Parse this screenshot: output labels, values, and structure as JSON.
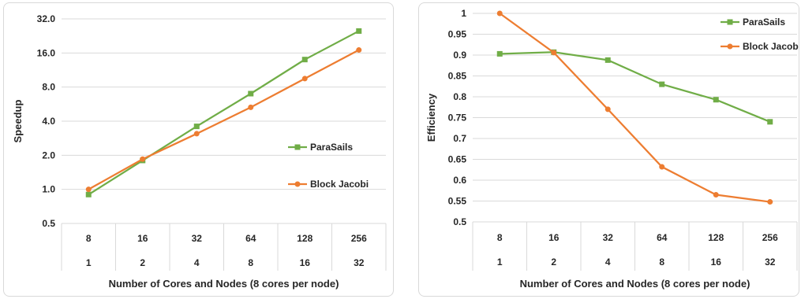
{
  "chart_data": [
    {
      "type": "line",
      "ylabel": "Speedup",
      "xlabel": "Number of Cores and Nodes (8 cores per node)",
      "y_scale": "log2",
      "ylim": [
        0.5,
        32.0
      ],
      "y_ticks": [
        "0.5",
        "1.0",
        "2.0",
        "4.0",
        "8.0",
        "16.0",
        "32.0"
      ],
      "y_tick_values": [
        0.5,
        1,
        2,
        4,
        8,
        16,
        32
      ],
      "categories_row1": [
        "8",
        "16",
        "32",
        "64",
        "128",
        "256"
      ],
      "categories_row2": [
        "1",
        "2",
        "4",
        "8",
        "16",
        "32"
      ],
      "grid": true,
      "legend_position": "right",
      "series": [
        {
          "name": "ParaSails",
          "color": "#70ad47",
          "marker": "square",
          "values": [
            0.9,
            1.8,
            3.6,
            7.0,
            14.0,
            25.0
          ]
        },
        {
          "name": "Block Jacobi",
          "color": "#ed7d31",
          "marker": "circle",
          "values": [
            1.0,
            1.85,
            3.1,
            5.3,
            9.5,
            17.0
          ]
        }
      ]
    },
    {
      "type": "line",
      "ylabel": "Efficiency",
      "xlabel": "Number of Cores and Nodes (8 cores per node)",
      "ylim": [
        0.5,
        1.0
      ],
      "y_ticks": [
        "0.5",
        "0.55",
        "0.6",
        "0.65",
        "0.7",
        "0.75",
        "0.8",
        "0.85",
        "0.9",
        "0.95",
        "1"
      ],
      "y_tick_values": [
        0.5,
        0.55,
        0.6,
        0.65,
        0.7,
        0.75,
        0.8,
        0.85,
        0.9,
        0.95,
        1.0
      ],
      "categories_row1": [
        "8",
        "16",
        "32",
        "64",
        "128",
        "256"
      ],
      "categories_row2": [
        "1",
        "2",
        "4",
        "8",
        "16",
        "32"
      ],
      "grid": true,
      "legend_position": "top-right",
      "series": [
        {
          "name": "ParaSails",
          "color": "#70ad47",
          "marker": "square",
          "values": [
            0.903,
            0.907,
            0.888,
            0.83,
            0.793,
            0.74
          ]
        },
        {
          "name": "Block Jacobi",
          "color": "#ed7d31",
          "marker": "circle",
          "values": [
            1.0,
            0.906,
            0.77,
            0.632,
            0.565,
            0.548
          ]
        }
      ]
    }
  ]
}
